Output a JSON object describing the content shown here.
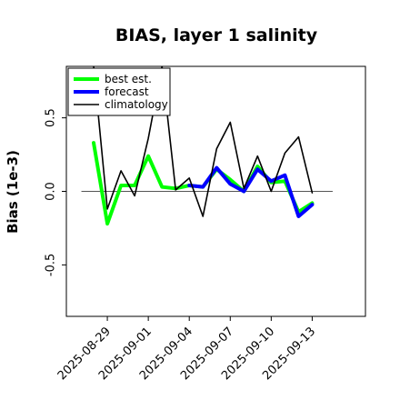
{
  "chart_data": {
    "type": "line",
    "title": "BIAS, layer 1 salinity",
    "xlabel": "",
    "ylabel": "Bias (1e-3)",
    "ylim": [
      -0.85,
      0.85
    ],
    "xlim": [
      -3.0,
      18.9
    ],
    "grid": false,
    "legend_position": "top-left",
    "zero_line": true,
    "yticks": [
      {
        "value": -0.5,
        "label": "-0.5"
      },
      {
        "value": 0.0,
        "label": "0.0"
      },
      {
        "value": 0.5,
        "label": "0.5"
      }
    ],
    "xticks": [
      {
        "value": 0,
        "label": "2025-08-29",
        "color": "#000000"
      },
      {
        "value": 3,
        "label": "2025-09-01",
        "color": "#000000"
      },
      {
        "value": 6,
        "label": "2025-09-04",
        "color": "#1a8c1a"
      },
      {
        "value": 9,
        "label": "2025-09-07",
        "color": "#000000"
      },
      {
        "value": 12,
        "label": "2025-09-10",
        "color": "#000000"
      },
      {
        "value": 15,
        "label": "2025-09-13",
        "color": "#000000"
      }
    ],
    "series": [
      {
        "name": "best est.",
        "color": "#00ff00",
        "width": 4,
        "x": [
          -1,
          0,
          1,
          2,
          3,
          4,
          5,
          6,
          7,
          8,
          9,
          10,
          11,
          12,
          13,
          14,
          15
        ],
        "values": [
          0.33,
          -0.22,
          0.04,
          0.04,
          0.24,
          0.03,
          0.02,
          0.04,
          0.03,
          0.15,
          0.08,
          0.0,
          0.17,
          0.06,
          0.07,
          -0.14,
          -0.08
        ]
      },
      {
        "name": "forecast",
        "color": "#0000ff",
        "width": 4,
        "x": [
          6,
          7,
          8,
          9,
          10,
          11,
          12,
          13,
          14,
          15
        ],
        "values": [
          0.04,
          0.03,
          0.16,
          0.05,
          0.0,
          0.15,
          0.07,
          0.11,
          -0.17,
          -0.09
        ]
      },
      {
        "name": "climatology",
        "color": "#000000",
        "width": 1.6,
        "x": [
          -1,
          0,
          1,
          2,
          3,
          4,
          5,
          6,
          7,
          8,
          9,
          10,
          11,
          12,
          13,
          14,
          15
        ],
        "values": [
          0.85,
          -0.12,
          0.14,
          -0.03,
          0.36,
          0.85,
          0.01,
          0.09,
          -0.17,
          0.29,
          0.47,
          0.02,
          0.24,
          0.0,
          0.26,
          0.37,
          -0.01
        ]
      }
    ]
  }
}
